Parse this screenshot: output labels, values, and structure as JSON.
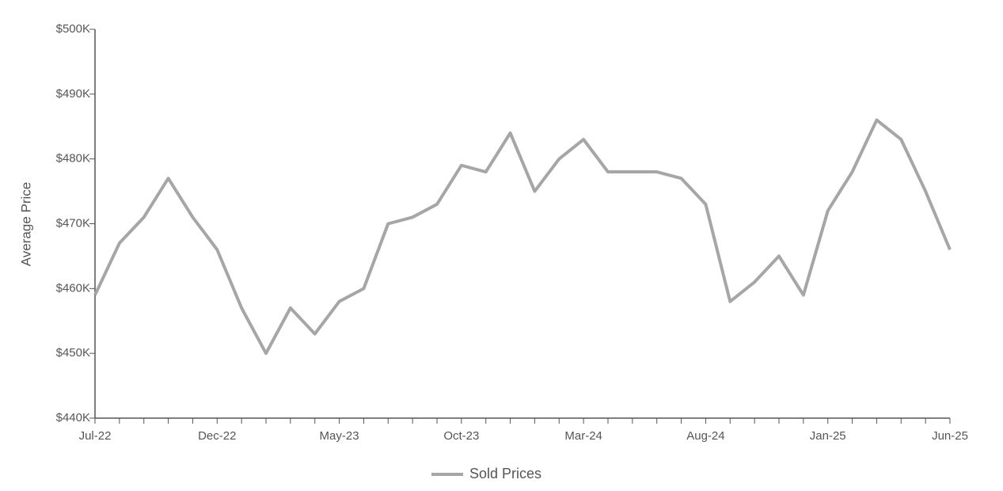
{
  "chart_data": {
    "type": "line",
    "y_label": "Average Price",
    "categories": [
      "Jul-22",
      null,
      null,
      null,
      null,
      "Dec-22",
      null,
      null,
      null,
      null,
      "May-23",
      null,
      null,
      null,
      null,
      "Oct-23",
      null,
      null,
      null,
      null,
      "Mar-24",
      null,
      null,
      null,
      null,
      "Aug-24",
      null,
      null,
      null,
      null,
      "Jan-25",
      null,
      null,
      null,
      null,
      "Jun-25"
    ],
    "series": [
      {
        "name": "Sold Prices",
        "color": "#a6a6a6",
        "values": [
          459000,
          467000,
          471000,
          477000,
          471000,
          466000,
          457000,
          450000,
          457000,
          453000,
          458000,
          460000,
          470000,
          471000,
          473000,
          479000,
          478000,
          484000,
          475000,
          480000,
          483000,
          478000,
          478000,
          478000,
          477000,
          473000,
          458000,
          461000,
          465000,
          459000,
          472000,
          478000,
          486000,
          483000,
          475000,
          466000
        ]
      }
    ],
    "ylim": [
      440000,
      500000
    ],
    "yticks": [
      {
        "value": 440000,
        "label": "$440K"
      },
      {
        "value": 450000,
        "label": "$450K"
      },
      {
        "value": 460000,
        "label": "$460K"
      },
      {
        "value": 470000,
        "label": "$470K"
      },
      {
        "value": 480000,
        "label": "$480K"
      },
      {
        "value": 490000,
        "label": "$490K"
      },
      {
        "value": 500000,
        "label": "$500K"
      }
    ],
    "legend": "bottom"
  }
}
